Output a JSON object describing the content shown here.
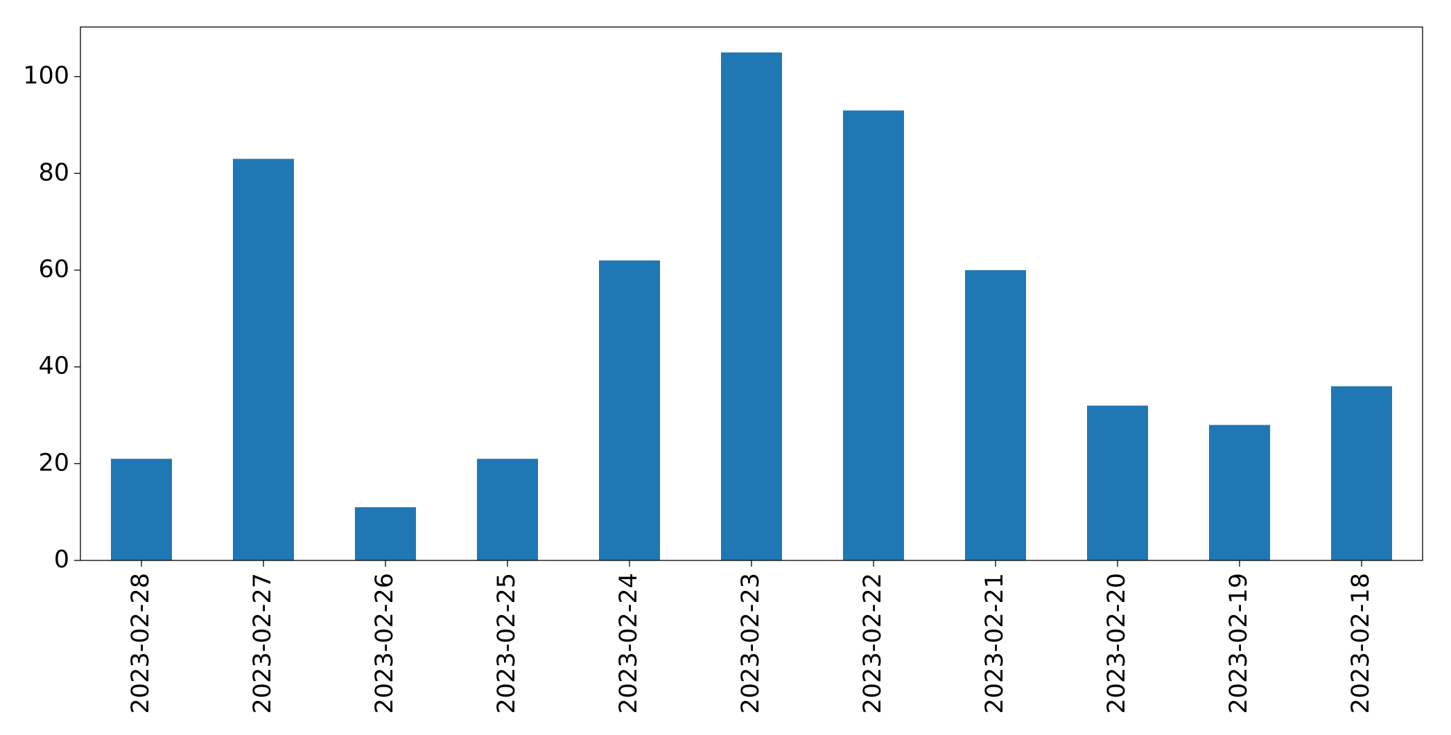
{
  "chart_data": {
    "type": "bar",
    "categories": [
      "2023-02-28",
      "2023-02-27",
      "2023-02-26",
      "2023-02-25",
      "2023-02-24",
      "2023-02-23",
      "2023-02-22",
      "2023-02-21",
      "2023-02-20",
      "2023-02-19",
      "2023-02-18"
    ],
    "values": [
      21,
      83,
      11,
      21,
      62,
      105,
      93,
      60,
      32,
      28,
      36
    ],
    "color": "#1f77b4",
    "ylim": [
      0,
      110.25
    ],
    "yticks": [
      0,
      20,
      40,
      60,
      80,
      100
    ],
    "grid": false
  }
}
